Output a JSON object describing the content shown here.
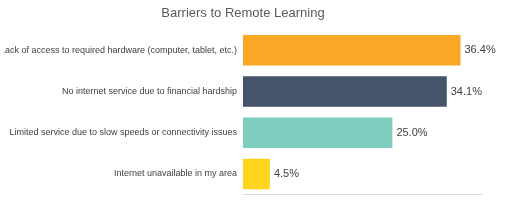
{
  "chart_data": {
    "type": "bar",
    "title": "Barriers to Remote Learning",
    "orientation": "horizontal",
    "categories": [
      "Lack of access to required hardware (computer, tablet, etc.)",
      "No internet service due to financial hardship",
      "Limited service due to slow speeds or connectivity issues",
      "Internet unavailable in my area"
    ],
    "values": [
      36.4,
      34.1,
      25.0,
      4.5
    ],
    "value_labels": [
      "36.4%",
      "34.1%",
      "25.0%",
      "4.5%"
    ],
    "colors": [
      "#f9a825",
      "#44546a",
      "#7ecdbf",
      "#ffd41f"
    ],
    "xlim": [
      0,
      40
    ],
    "grid": false,
    "data_labels": true,
    "tick_labels": "y"
  }
}
